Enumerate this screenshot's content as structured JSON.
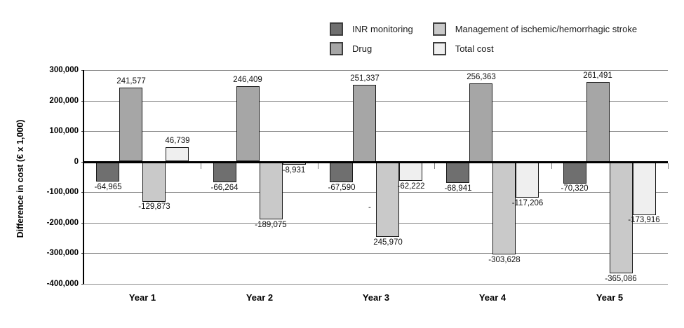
{
  "figure": {
    "background": "#ffffff"
  },
  "chart_data": {
    "type": "bar",
    "categories": [
      "Year 1",
      "Year 2",
      "Year 3",
      "Year 4",
      "Year 5"
    ],
    "series": [
      {
        "name": "INR monitoring",
        "color": "#6f6f6f",
        "values": [
          -64965,
          -66264,
          -67590,
          -68941,
          -70320
        ],
        "labels": [
          "-64,965",
          "-66,264",
          "-67,590",
          "-68,941",
          "-70,320"
        ]
      },
      {
        "name": "Drug",
        "color": "#a6a6a6",
        "values": [
          241577,
          246409,
          251337,
          256363,
          261491
        ],
        "labels": [
          "241,577",
          "246,409",
          "251,337",
          "256,363",
          "261,491"
        ]
      },
      {
        "name": "Management of ischemic/hemorrhagic stroke",
        "color": "#c9c9c9",
        "values": [
          -129873,
          -189075,
          -245970,
          -303628,
          -365086
        ],
        "labels": [
          "-129,873",
          "-189,075",
          "245,970",
          "-303,628",
          "-365,086"
        ]
      },
      {
        "name": "Total cost",
        "color": "#efefef",
        "values": [
          46739,
          -8931,
          -62222,
          -117206,
          -173916
        ],
        "labels": [
          "46,739",
          "-8,931",
          "-62,222",
          "-117,206",
          "-173,916"
        ]
      }
    ],
    "ylabel": "Difference in cost (€ x 1,000)",
    "xlabel": "",
    "ylim": [
      -400000,
      300000
    ],
    "ytick_step": 100000,
    "ytick_labels": [
      "300,000",
      "200,000",
      "100,000",
      "0",
      "-100,000",
      "-200,000",
      "-300,000",
      "-400,000"
    ],
    "grid": true,
    "legend_position": "top-right",
    "annotations": [
      {
        "text": "-",
        "category_index": 2,
        "series_index": 2,
        "value_y": -150000,
        "dx": -11,
        "note": "stray minus fragment of the wrapped Year 3 management label"
      }
    ]
  }
}
